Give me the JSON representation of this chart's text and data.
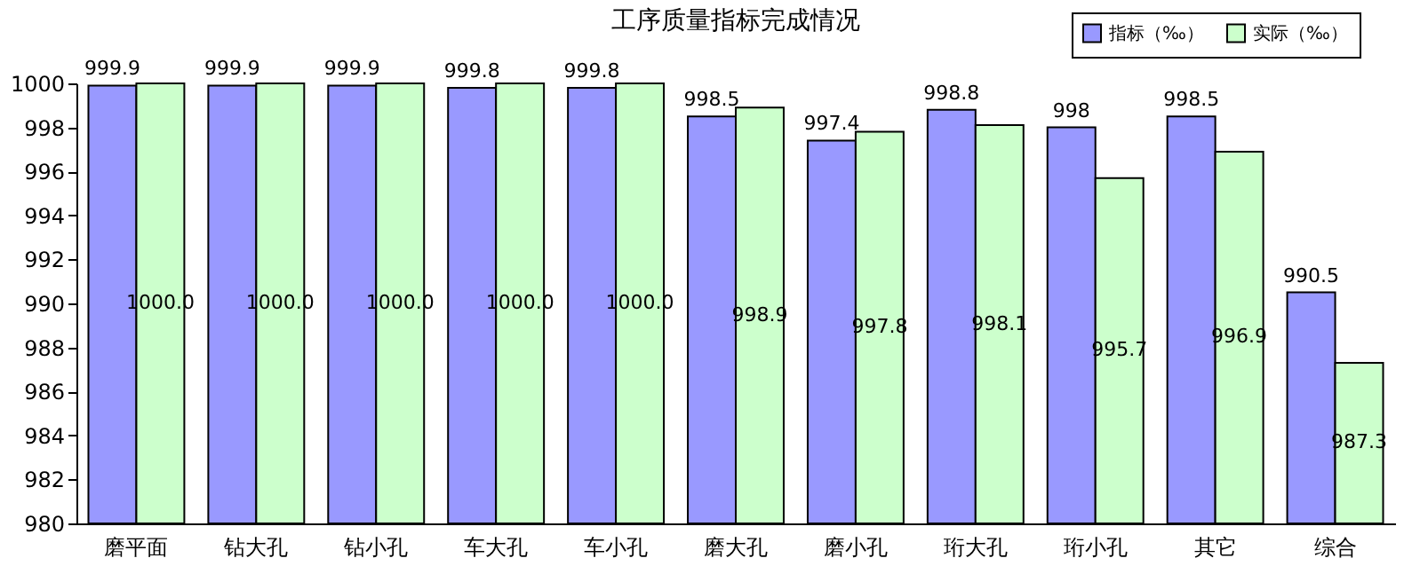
{
  "chart_data": {
    "type": "bar",
    "title": "工序质量指标完成情况",
    "categories": [
      "磨平面",
      "钻大孔",
      "钻小孔",
      "车大孔",
      "车小孔",
      "磨大孔",
      "磨小孔",
      "珩大孔",
      "珩小孔",
      "其它",
      "综合"
    ],
    "series": [
      {
        "name": "指标（‰）",
        "color": "#9999ff",
        "values": [
          999.9,
          999.9,
          999.9,
          999.8,
          999.8,
          998.5,
          997.4,
          998.8,
          998.0,
          998.5,
          990.5
        ],
        "value_labels": [
          "999.9",
          "999.9",
          "999.9",
          "999.8",
          "999.8",
          "998.5",
          "997.4",
          "998.8",
          "998",
          "998.5",
          "990.5"
        ]
      },
      {
        "name": "实际（‰）",
        "color": "#ccffcc",
        "values": [
          1000.0,
          1000.0,
          1000.0,
          1000.0,
          1000.0,
          998.9,
          997.8,
          998.1,
          995.7,
          996.9,
          987.3
        ],
        "value_labels": [
          "1000.0",
          "1000.0",
          "1000.0",
          "1000.0",
          "1000.0",
          "998.9",
          "997.8",
          "998.1",
          "995.7",
          "996.9",
          "987.3"
        ]
      }
    ],
    "ylim": [
      980,
      1000
    ],
    "yticks": [
      980,
      982,
      984,
      986,
      988,
      990,
      992,
      994,
      996,
      998,
      {
        "value": 1000,
        "label": "1000"
      }
    ],
    "grid": false,
    "legend": "top right"
  }
}
